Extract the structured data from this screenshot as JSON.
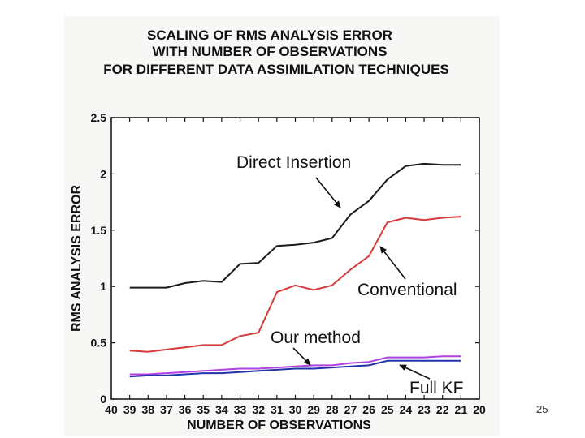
{
  "page_number": "25",
  "chart_data": {
    "type": "line",
    "title_lines": [
      "SCALING OF RMS ANALYSIS ERROR",
      "WITH NUMBER OF OBSERVATIONS",
      "FOR DIFFERENT DATA ASSIMILATION TECHNIQUES"
    ],
    "xlabel": "NUMBER OF OBSERVATIONS",
    "ylabel": "RMS ANALYSIS ERROR",
    "x_ticks": [
      40,
      39,
      38,
      37,
      36,
      35,
      34,
      33,
      32,
      31,
      30,
      29,
      28,
      27,
      26,
      25,
      24,
      23,
      22,
      21,
      20
    ],
    "y_ticks": [
      0,
      0.5,
      1,
      1.5,
      2,
      2.5
    ],
    "xlim": [
      40,
      20
    ],
    "ylim": [
      0,
      2.5
    ],
    "x": [
      39,
      38,
      37,
      36,
      35,
      34,
      33,
      32,
      31,
      30,
      29,
      28,
      27,
      26,
      25,
      24,
      23,
      22,
      21
    ],
    "series": [
      {
        "name": "Direct Insertion",
        "color": "#1a1a1a",
        "values": [
          0.99,
          0.99,
          0.99,
          1.03,
          1.05,
          1.04,
          1.2,
          1.21,
          1.36,
          1.37,
          1.39,
          1.43,
          1.64,
          1.76,
          1.95,
          2.07,
          2.09,
          2.08,
          2.08
        ]
      },
      {
        "name": "Conventional",
        "color": "#d63a3a",
        "values": [
          0.43,
          0.42,
          0.44,
          0.46,
          0.48,
          0.48,
          0.56,
          0.59,
          0.95,
          1.01,
          0.97,
          1.01,
          1.15,
          1.27,
          1.57,
          1.61,
          1.59,
          1.61,
          1.62
        ]
      },
      {
        "name": "Our method",
        "color": "#b040e0",
        "values": [
          0.22,
          0.22,
          0.23,
          0.24,
          0.25,
          0.26,
          0.27,
          0.27,
          0.28,
          0.29,
          0.3,
          0.3,
          0.32,
          0.33,
          0.37,
          0.37,
          0.37,
          0.38,
          0.38
        ]
      },
      {
        "name": "Full KF",
        "color": "#2233aa",
        "values": [
          0.2,
          0.21,
          0.21,
          0.22,
          0.23,
          0.23,
          0.24,
          0.25,
          0.26,
          0.27,
          0.27,
          0.28,
          0.29,
          0.3,
          0.34,
          0.34,
          0.34,
          0.34,
          0.34
        ]
      }
    ],
    "annotations": [
      "Direct Insertion",
      "Conventional",
      "Our method",
      "Full KF"
    ],
    "grid": false,
    "legend": "none"
  }
}
